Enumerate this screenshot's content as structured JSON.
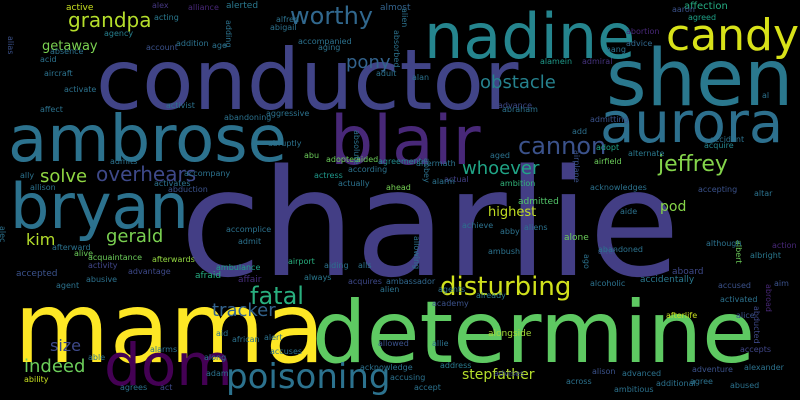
{
  "cloud": {
    "background": "#000000",
    "words": [
      {
        "text": "charlie",
        "color": "#433e85"
      },
      {
        "text": "conductor",
        "color": "#414487"
      },
      {
        "text": "determine",
        "color": "#5ec962"
      },
      {
        "text": "mama",
        "color": "#fde725"
      },
      {
        "text": "shen",
        "color": "#2a788e"
      },
      {
        "text": "nadine",
        "color": "#25858e"
      },
      {
        "text": "ambrose",
        "color": "#2c728e"
      },
      {
        "text": "blair",
        "color": "#482878"
      },
      {
        "text": "aurora",
        "color": "#2d708e"
      },
      {
        "text": "bryan",
        "color": "#2c728e"
      },
      {
        "text": "candy",
        "color": "#d8e219"
      },
      {
        "text": "dom",
        "color": "#440154"
      },
      {
        "text": "poisoning",
        "color": "#2c728e"
      },
      {
        "text": "fatal",
        "color": "#29af7f"
      },
      {
        "text": "disturbing",
        "color": "#d0e11c"
      },
      {
        "text": "cannon",
        "color": "#3b528b"
      },
      {
        "text": "jeffrey",
        "color": "#84d44b"
      },
      {
        "text": "grandpa",
        "color": "#b5de2b"
      },
      {
        "text": "worthy",
        "color": "#31688e"
      },
      {
        "text": "pony",
        "color": "#33638d"
      },
      {
        "text": "obstacle",
        "color": "#26828e"
      },
      {
        "text": "whoever",
        "color": "#20a486"
      },
      {
        "text": "solve",
        "color": "#90d743"
      },
      {
        "text": "overhears",
        "color": "#3e4989"
      },
      {
        "text": "gerald",
        "color": "#7ad151"
      },
      {
        "text": "tracker",
        "color": "#33638d"
      },
      {
        "text": "indeed",
        "color": "#6ccd5a"
      },
      {
        "text": "stepfather",
        "color": "#b5de2b"
      },
      {
        "text": "kim",
        "color": "#b5de2b"
      },
      {
        "text": "size",
        "color": "#3e4989"
      },
      {
        "text": "pod",
        "color": "#86d549"
      },
      {
        "text": "highest",
        "color": "#c2df23"
      },
      {
        "text": "getaway",
        "color": "#7ad151"
      },
      {
        "text": "alex",
        "color": "#453781"
      },
      {
        "text": "active",
        "color": "#c8e020"
      },
      {
        "text": "alliance",
        "color": "#482878"
      },
      {
        "text": "alerted",
        "color": "#2a788e"
      },
      {
        "text": "almost",
        "color": "#33638d"
      },
      {
        "text": "agreed",
        "color": "#1fa187"
      },
      {
        "text": "affection",
        "color": "#25ac82"
      },
      {
        "text": "alfred",
        "color": "#2c728e"
      },
      {
        "text": "aaron",
        "color": "#3b528b"
      },
      {
        "text": "abigail",
        "color": "#2c728e"
      },
      {
        "text": "alamein",
        "color": "#1f9a8a"
      },
      {
        "text": "admiral",
        "color": "#46337e"
      },
      {
        "text": "advice",
        "color": "#31688e"
      },
      {
        "text": "acting",
        "color": "#2a788e"
      },
      {
        "text": "abortion",
        "color": "#482878"
      },
      {
        "text": "address",
        "color": "#29798e"
      },
      {
        "text": "agency",
        "color": "#277f8e"
      },
      {
        "text": "alone",
        "color": "#6ccd5a"
      },
      {
        "text": "advance",
        "color": "#3e4989"
      },
      {
        "text": "affair",
        "color": "#472d7b"
      },
      {
        "text": "admitted",
        "color": "#52c569"
      },
      {
        "text": "afraid",
        "color": "#25ac82"
      },
      {
        "text": "aboard",
        "color": "#3e4989"
      },
      {
        "text": "activated",
        "color": "#2c728e"
      },
      {
        "text": "accused",
        "color": "#3b528b"
      },
      {
        "text": "alice",
        "color": "#3b528b"
      },
      {
        "text": "accepts",
        "color": "#404688"
      },
      {
        "text": "ambition",
        "color": "#31b57b"
      },
      {
        "text": "ambulance",
        "color": "#1fa187"
      },
      {
        "text": "alien",
        "color": "#2c728e"
      },
      {
        "text": "ahead",
        "color": "#75d054"
      },
      {
        "text": "actual",
        "color": "#424086"
      },
      {
        "text": "actress",
        "color": "#1f988b"
      },
      {
        "text": "agreement",
        "color": "#238a8d"
      },
      {
        "text": "acquire",
        "color": "#25858e"
      },
      {
        "text": "acquires",
        "color": "#3e4989"
      },
      {
        "text": "ambassador",
        "color": "#31688e"
      },
      {
        "text": "alongside",
        "color": "#a2da37"
      },
      {
        "text": "already",
        "color": "#2a788e"
      },
      {
        "text": "academy",
        "color": "#3b528b"
      },
      {
        "text": "always",
        "color": "#2a788e"
      },
      {
        "text": "airport",
        "color": "#29af7f"
      },
      {
        "text": "afterwards",
        "color": "#93d741"
      },
      {
        "text": "advantage",
        "color": "#3e4989"
      },
      {
        "text": "activity",
        "color": "#404688"
      },
      {
        "text": "acquaintance",
        "color": "#6ccd5a"
      },
      {
        "text": "afterlife",
        "color": "#c8e020"
      },
      {
        "text": "accidentally",
        "color": "#2a788e"
      },
      {
        "text": "alcoholic",
        "color": "#2c728e"
      },
      {
        "text": "alternate",
        "color": "#2a788e"
      },
      {
        "text": "adopt",
        "color": "#20a486"
      },
      {
        "text": "add",
        "color": "#2d708e"
      },
      {
        "text": "airfield",
        "color": "#6ccd5a"
      },
      {
        "text": "acknowledges",
        "color": "#2c728e"
      },
      {
        "text": "accepting",
        "color": "#3b528b"
      },
      {
        "text": "altar",
        "color": "#2c728e"
      },
      {
        "text": "aide",
        "color": "#2c728e"
      },
      {
        "text": "albert",
        "color": "#6ccd5a"
      },
      {
        "text": "action",
        "color": "#482878"
      },
      {
        "text": "albright",
        "color": "#2a788e"
      },
      {
        "text": "alter",
        "color": "#3b528b"
      },
      {
        "text": "although",
        "color": "#2c728e"
      },
      {
        "text": "aim",
        "color": "#3b528b"
      },
      {
        "text": "abducted",
        "color": "#3e4989"
      },
      {
        "text": "abroad",
        "color": "#482878"
      },
      {
        "text": "adventure",
        "color": "#3b528b"
      },
      {
        "text": "alexander",
        "color": "#2c728e"
      },
      {
        "text": "abused",
        "color": "#2c728e"
      },
      {
        "text": "agree",
        "color": "#2c728e"
      },
      {
        "text": "additional",
        "color": "#2c728e"
      },
      {
        "text": "ambitious",
        "color": "#2c728e"
      },
      {
        "text": "advanced",
        "color": "#2c728e"
      },
      {
        "text": "alison",
        "color": "#3b528b"
      },
      {
        "text": "across",
        "color": "#2c728e"
      },
      {
        "text": "accept",
        "color": "#2c728e"
      },
      {
        "text": "advises",
        "color": "#3e4989"
      },
      {
        "text": "accusing",
        "color": "#2c728e"
      },
      {
        "text": "allie",
        "color": "#2c728e"
      },
      {
        "text": "allowed",
        "color": "#3b528b"
      },
      {
        "text": "acknowledge",
        "color": "#2c728e"
      },
      {
        "text": "accuses",
        "color": "#2c728e"
      },
      {
        "text": "african",
        "color": "#2c728e"
      },
      {
        "text": "alert",
        "color": "#2c728e"
      },
      {
        "text": "aid",
        "color": "#2c728e"
      },
      {
        "text": "along",
        "color": "#2c728e"
      },
      {
        "text": "adam",
        "color": "#2c728e"
      },
      {
        "text": "act",
        "color": "#3e4989"
      },
      {
        "text": "agrees",
        "color": "#2c728e"
      },
      {
        "text": "ability",
        "color": "#c8e020"
      },
      {
        "text": "able",
        "color": "#2c728e"
      },
      {
        "text": "agent",
        "color": "#2c728e"
      },
      {
        "text": "abusive",
        "color": "#2c728e"
      },
      {
        "text": "accepted",
        "color": "#3b528b"
      },
      {
        "text": "afterward",
        "color": "#2c728e"
      },
      {
        "text": "alive",
        "color": "#6ccd5a"
      },
      {
        "text": "alec",
        "color": "#2c728e"
      },
      {
        "text": "accomplice",
        "color": "#2c728e"
      },
      {
        "text": "admit",
        "color": "#2c728e"
      },
      {
        "text": "accompany",
        "color": "#2c728e"
      },
      {
        "text": "abduction",
        "color": "#3b528b"
      },
      {
        "text": "activates",
        "color": "#2c728e"
      },
      {
        "text": "admits",
        "color": "#2c728e"
      },
      {
        "text": "allison",
        "color": "#2c728e"
      },
      {
        "text": "ally",
        "color": "#2c728e"
      },
      {
        "text": "abu",
        "color": "#6ccd5a"
      },
      {
        "text": "adopted",
        "color": "#6ccd5a"
      },
      {
        "text": "aided",
        "color": "#6ccd5a"
      },
      {
        "text": "abruptly",
        "color": "#2c728e"
      },
      {
        "text": "abandoning",
        "color": "#2c728e"
      },
      {
        "text": "aggressive",
        "color": "#2c728e"
      },
      {
        "text": "activist",
        "color": "#2c728e"
      },
      {
        "text": "affect",
        "color": "#2c728e"
      },
      {
        "text": "activate",
        "color": "#2c728e"
      },
      {
        "text": "aircraft",
        "color": "#2c728e"
      },
      {
        "text": "acid",
        "color": "#2c728e"
      },
      {
        "text": "alias",
        "color": "#3b528b"
      },
      {
        "text": "absence",
        "color": "#2c728e"
      },
      {
        "text": "account",
        "color": "#3b528b"
      },
      {
        "text": "addition",
        "color": "#2c728e"
      },
      {
        "text": "age",
        "color": "#2c728e"
      },
      {
        "text": "adding",
        "color": "#2c728e"
      },
      {
        "text": "accompanied",
        "color": "#2c728e"
      },
      {
        "text": "aging",
        "color": "#2c728e"
      },
      {
        "text": "adult",
        "color": "#2c728e"
      },
      {
        "text": "alan",
        "color": "#2c728e"
      },
      {
        "text": "abraham",
        "color": "#2c728e"
      },
      {
        "text": "admitting",
        "color": "#3b528b"
      },
      {
        "text": "aang",
        "color": "#2c728e"
      },
      {
        "text": "al",
        "color": "#2c728e"
      },
      {
        "text": "accident",
        "color": "#2c728e"
      },
      {
        "text": "aged",
        "color": "#2c728e"
      },
      {
        "text": "ambush",
        "color": "#2c728e"
      },
      {
        "text": "achieve",
        "color": "#2c728e"
      },
      {
        "text": "abby",
        "color": "#2c728e"
      },
      {
        "text": "aliens",
        "color": "#2c728e"
      },
      {
        "text": "airplane",
        "color": "#3b528b"
      },
      {
        "text": "actually",
        "color": "#2c728e"
      },
      {
        "text": "according",
        "color": "#2c728e"
      },
      {
        "text": "aftermath",
        "color": "#2c728e"
      },
      {
        "text": "abbey",
        "color": "#2c728e"
      },
      {
        "text": "alarm",
        "color": "#2c728e"
      },
      {
        "text": "absolute",
        "color": "#2c728e"
      },
      {
        "text": "allowing",
        "color": "#2c728e"
      },
      {
        "text": "ago",
        "color": "#2c728e"
      },
      {
        "text": "alien",
        "color": "#2c728e"
      },
      {
        "text": "absorbed",
        "color": "#2c728e"
      },
      {
        "text": "abandoned",
        "color": "#2c728e"
      },
      {
        "text": "agents",
        "color": "#2c728e"
      },
      {
        "text": "aiding",
        "color": "#2c728e"
      },
      {
        "text": "alls",
        "color": "#2c728e"
      },
      {
        "text": "alarms",
        "color": "#2c728e"
      }
    ]
  }
}
